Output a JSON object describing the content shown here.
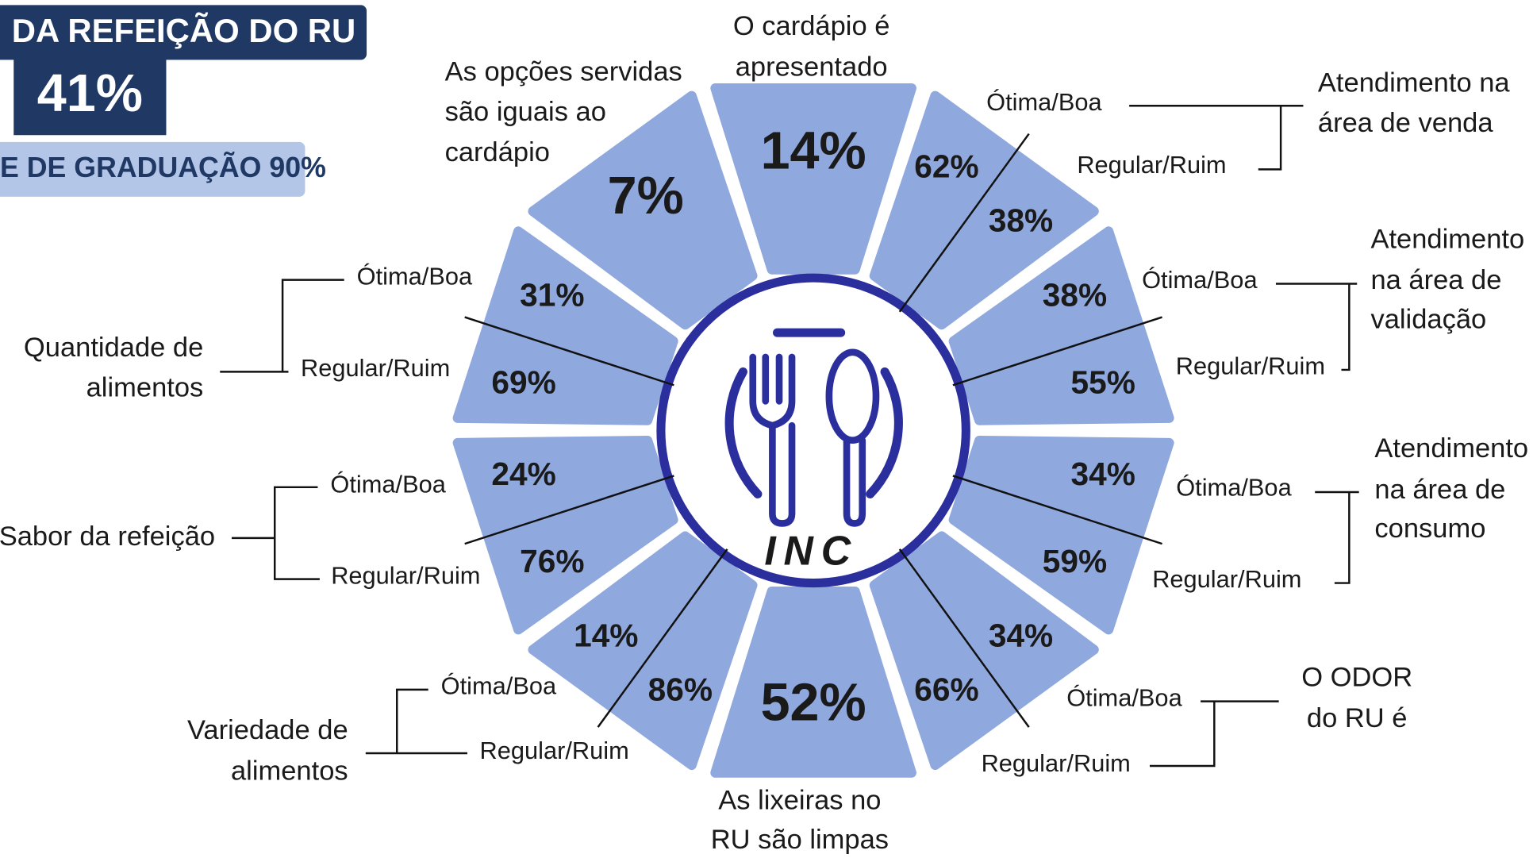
{
  "header": {
    "title": "DA REFEIÇÃO DO RU",
    "value": "41%",
    "subtitle": "E DE GRADUAÇÃO 90%"
  },
  "ratings": [
    "Ótima/Boa",
    "Regular/Ruim"
  ],
  "logo": "INC",
  "segments": [
    {
      "label": [
        "O cardápio é",
        "apresentado"
      ],
      "values": [
        "14%"
      ]
    },
    {
      "label": [
        "Atendimento na",
        "área de venda"
      ],
      "values": [
        "62%",
        "38%"
      ]
    },
    {
      "label": [
        "Atendimento",
        "na área de",
        "validação"
      ],
      "values": [
        "38%",
        "55%"
      ]
    },
    {
      "label": [
        "Atendimento",
        "na área de",
        "consumo"
      ],
      "values": [
        "34%",
        "59%"
      ]
    },
    {
      "label": [
        "O ODOR",
        "do RU é"
      ],
      "values": [
        "34%",
        "66%"
      ]
    },
    {
      "label": [
        "As lixeiras no",
        "RU são limpas"
      ],
      "values": [
        "52%"
      ]
    },
    {
      "label": [
        "Variedade de",
        "alimentos"
      ],
      "values": [
        "14%",
        "86%"
      ]
    },
    {
      "label": [
        "Sabor da refeição"
      ],
      "values": [
        "24%",
        "76%"
      ]
    },
    {
      "label": [
        "Quantidade de",
        "alimentos"
      ],
      "values": [
        "31%",
        "69%"
      ]
    },
    {
      "label": [
        "As opções servidas",
        "são iguais ao",
        "cardápio"
      ],
      "values": [
        "7%"
      ]
    }
  ]
}
